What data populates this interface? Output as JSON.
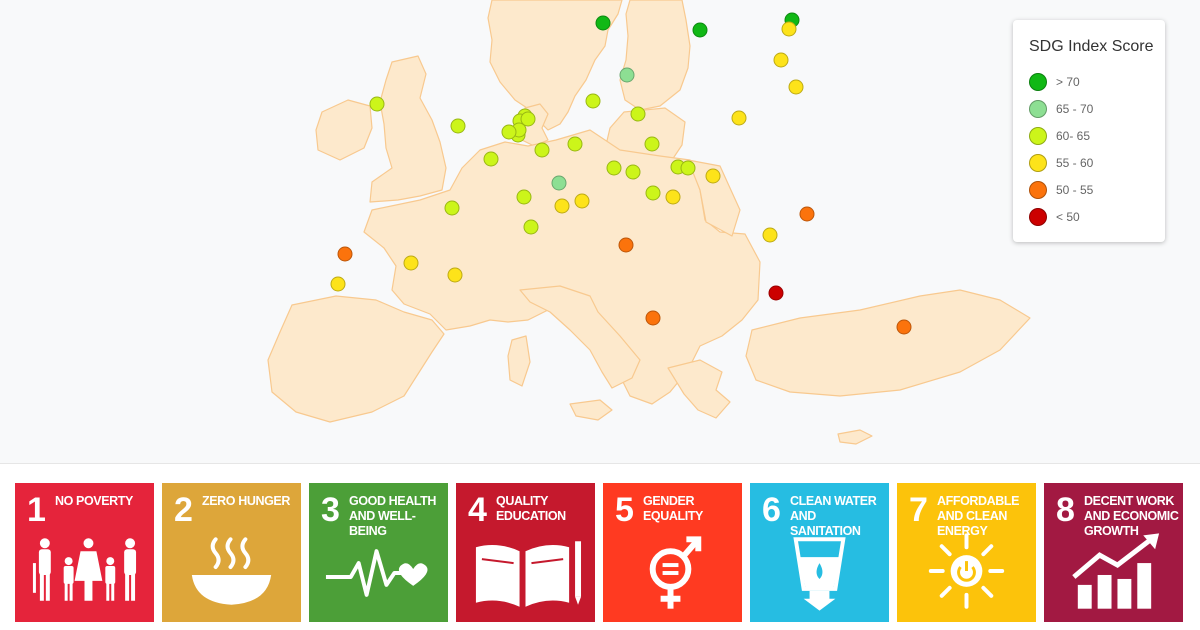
{
  "legend": {
    "title": "SDG Index Score",
    "items": [
      {
        "label": "> 70",
        "color": "#11b815"
      },
      {
        "label": "65 - 70",
        "color": "#8ddf93"
      },
      {
        "label": "60- 65",
        "color": "#ccf51a"
      },
      {
        "label": "55 - 60",
        "color": "#fde31a"
      },
      {
        "label": "50 - 55",
        "color": "#fb730c"
      },
      {
        "label": "< 50",
        "color": "#cc0000"
      }
    ]
  },
  "map_points": [
    {
      "lon": 18.07,
      "lat": 59.33,
      "score_band": "> 70"
    },
    {
      "lon": 24.94,
      "lat": 60.17,
      "score_band": "> 70"
    },
    {
      "lon": 10.75,
      "lat": 59.91,
      "score_band": "> 70"
    },
    {
      "lon": 12.57,
      "lat": 55.68,
      "score_band": "65 - 70"
    },
    {
      "lon": 7.45,
      "lat": 46.95,
      "score_band": "65 - 70"
    },
    {
      "lon": -6.26,
      "lat": 53.35,
      "score_band": "60- 65"
    },
    {
      "lon": -0.13,
      "lat": 51.51,
      "score_band": "60- 65"
    },
    {
      "lon": 4.9,
      "lat": 52.37,
      "score_band": "60- 65"
    },
    {
      "lon": 4.48,
      "lat": 51.92,
      "score_band": "60- 65"
    },
    {
      "lon": 4.35,
      "lat": 50.85,
      "score_band": "60- 65"
    },
    {
      "lon": 5.12,
      "lat": 52.09,
      "score_band": "60- 65"
    },
    {
      "lon": 4.4,
      "lat": 51.22,
      "score_band": "60- 65"
    },
    {
      "lon": 3.72,
      "lat": 51.05,
      "score_band": "60- 65"
    },
    {
      "lon": 10.0,
      "lat": 53.55,
      "score_band": "60- 65"
    },
    {
      "lon": 13.4,
      "lat": 52.52,
      "score_band": "60- 65"
    },
    {
      "lon": 8.68,
      "lat": 50.11,
      "score_band": "60- 65"
    },
    {
      "lon": 6.13,
      "lat": 49.61,
      "score_band": "60- 65"
    },
    {
      "lon": 11.58,
      "lat": 48.14,
      "score_band": "60- 65"
    },
    {
      "lon": 14.42,
      "lat": 50.09,
      "score_band": "60- 65"
    },
    {
      "lon": 2.35,
      "lat": 48.86,
      "score_band": "60- 65"
    },
    {
      "lon": 16.37,
      "lat": 48.21,
      "score_band": "60- 65"
    },
    {
      "lon": 17.11,
      "lat": 48.15,
      "score_band": "60- 65"
    },
    {
      "lon": 13.04,
      "lat": 47.8,
      "score_band": "60- 65"
    },
    {
      "lon": 4.84,
      "lat": 45.76,
      "score_band": "60- 65"
    },
    {
      "lon": 14.51,
      "lat": 46.06,
      "score_band": "60- 65"
    },
    {
      "lon": -0.58,
      "lat": 44.84,
      "score_band": "60- 65"
    },
    {
      "lon": 5.37,
      "lat": 43.3,
      "score_band": "60- 65"
    },
    {
      "lon": 24.75,
      "lat": 59.44,
      "score_band": "55 - 60"
    },
    {
      "lon": 24.11,
      "lat": 56.95,
      "score_band": "55 - 60"
    },
    {
      "lon": 25.28,
      "lat": 54.69,
      "score_band": "55 - 60"
    },
    {
      "lon": 21.01,
      "lat": 52.23,
      "score_band": "55 - 60"
    },
    {
      "lon": 19.04,
      "lat": 47.5,
      "score_band": "55 - 60"
    },
    {
      "lon": 15.98,
      "lat": 45.81,
      "score_band": "55 - 60"
    },
    {
      "lon": 9.19,
      "lat": 45.46,
      "score_band": "55 - 60"
    },
    {
      "lon": 7.69,
      "lat": 45.07,
      "score_band": "55 - 60"
    },
    {
      "lon": 23.32,
      "lat": 42.7,
      "score_band": "55 - 60"
    },
    {
      "lon": -3.7,
      "lat": 40.42,
      "score_band": "55 - 60"
    },
    {
      "lon": -9.14,
      "lat": 38.72,
      "score_band": "55 - 60"
    },
    {
      "lon": -0.38,
      "lat": 39.47,
      "score_band": "55 - 60"
    },
    {
      "lon": 26.1,
      "lat": 44.43,
      "score_band": "50 - 55"
    },
    {
      "lon": -8.61,
      "lat": 41.15,
      "score_band": "50 - 55"
    },
    {
      "lon": 12.5,
      "lat": 41.9,
      "score_band": "50 - 55"
    },
    {
      "lon": 14.51,
      "lat": 35.9,
      "score_band": "50 - 55"
    },
    {
      "lon": 33.38,
      "lat": 35.17,
      "score_band": "50 - 55"
    },
    {
      "lon": 23.73,
      "lat": 37.98,
      "score_band": "< 50"
    }
  ],
  "goals": [
    {
      "number": "1",
      "title": "No Poverty",
      "color": "#e5243b",
      "icon": "people-family-icon"
    },
    {
      "number": "2",
      "title": "Zero Hunger",
      "color": "#dda63a",
      "icon": "food-bowl-icon"
    },
    {
      "number": "3",
      "title": "Good Health and Well-Being",
      "color": "#4c9f38",
      "icon": "heartbeat-icon"
    },
    {
      "number": "4",
      "title": "Quality Education",
      "color": "#c5192d",
      "icon": "book-pencil-icon"
    },
    {
      "number": "5",
      "title": "Gender Equality",
      "color": "#ff3a21",
      "icon": "gender-equality-icon"
    },
    {
      "number": "6",
      "title": "Clean Water and Sanitation",
      "color": "#26bde2",
      "icon": "water-glass-icon"
    },
    {
      "number": "7",
      "title": "Affordable and Clean Energy",
      "color": "#fcc30b",
      "icon": "sun-power-icon"
    },
    {
      "number": "8",
      "title": "Decent Work and Economic Growth",
      "color": "#a21942",
      "icon": "growth-chart-icon"
    }
  ]
}
